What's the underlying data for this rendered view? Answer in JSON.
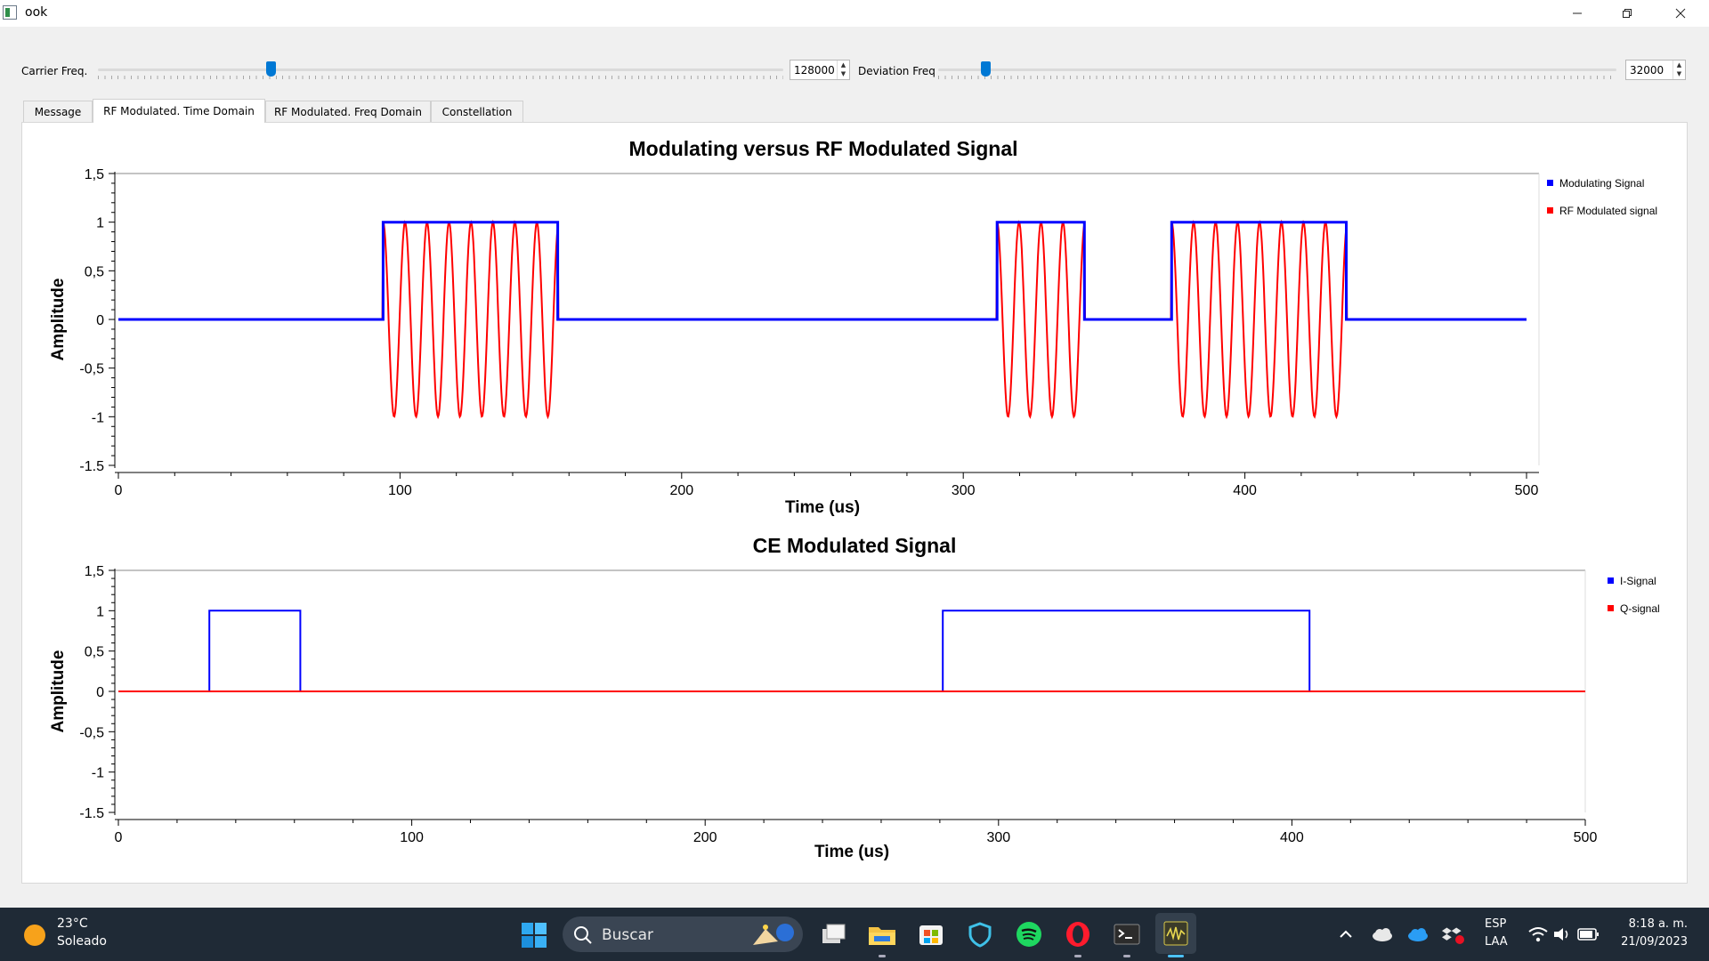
{
  "window": {
    "title": "ook"
  },
  "controls": {
    "carrier_label": "Carrier Freq.",
    "carrier_value": "128000",
    "carrier_slider_fraction": 0.252,
    "deviation_label": "Deviation Freq",
    "deviation_value": "32000",
    "deviation_slider_fraction": 0.07
  },
  "tabs": [
    {
      "label": "Message"
    },
    {
      "label": "RF Modulated. Time Domain"
    },
    {
      "label": "RF Modulated. Freq Domain"
    },
    {
      "label": "Constellation"
    }
  ],
  "active_tab": 1,
  "chart_data": [
    {
      "type": "line",
      "title": "Modulating versus RF Modulated Signal",
      "xlabel": "Time (us)",
      "ylabel": "Amplitude",
      "xlim": [
        0,
        500
      ],
      "ylim": [
        -1.5,
        1.5
      ],
      "xticks": [
        "0",
        "100",
        "200",
        "300",
        "400",
        "500"
      ],
      "yticks": [
        "1,5",
        "1",
        "0,5",
        "0",
        "-0,5",
        "-1",
        "-1.5"
      ],
      "legend_position": "right",
      "series": [
        {
          "name": "Modulating Signal",
          "color": "#0000ff",
          "on_intervals": [
            [
              94,
              156
            ],
            [
              312,
              343
            ],
            [
              374,
              436
            ]
          ],
          "x_end": 500
        },
        {
          "name": "RF Modulated signal",
          "color": "#ff0000",
          "on_intervals": [
            [
              94,
              156
            ],
            [
              312,
              343
            ],
            [
              374,
              436
            ]
          ],
          "oscillation_period_us": 7.8,
          "x_end": 500
        }
      ]
    },
    {
      "type": "line",
      "title": "CE Modulated Signal",
      "xlabel": "Time (us)",
      "ylabel": "Amplitude",
      "xlim": [
        0,
        500
      ],
      "ylim": [
        -1.5,
        1.5
      ],
      "xticks": [
        "0",
        "100",
        "200",
        "300",
        "400",
        "500"
      ],
      "yticks": [
        "1,5",
        "1",
        "0,5",
        "0",
        "-0,5",
        "-1",
        "-1.5"
      ],
      "legend_position": "right",
      "series": [
        {
          "name": "I-Signal",
          "color": "#0000ff",
          "on_intervals": [
            [
              31,
              62
            ],
            [
              281,
              406
            ]
          ],
          "x_end": 500
        },
        {
          "name": "Q-signal",
          "color": "#ff0000",
          "on_intervals": [],
          "x_end": 500
        }
      ]
    }
  ],
  "taskbar": {
    "weather_temp": "23°C",
    "weather_desc": "Soleado",
    "search_placeholder": "Buscar",
    "language": "ESP",
    "layout": "LAA",
    "time": "8:18 a. m.",
    "date": "21/09/2023"
  }
}
